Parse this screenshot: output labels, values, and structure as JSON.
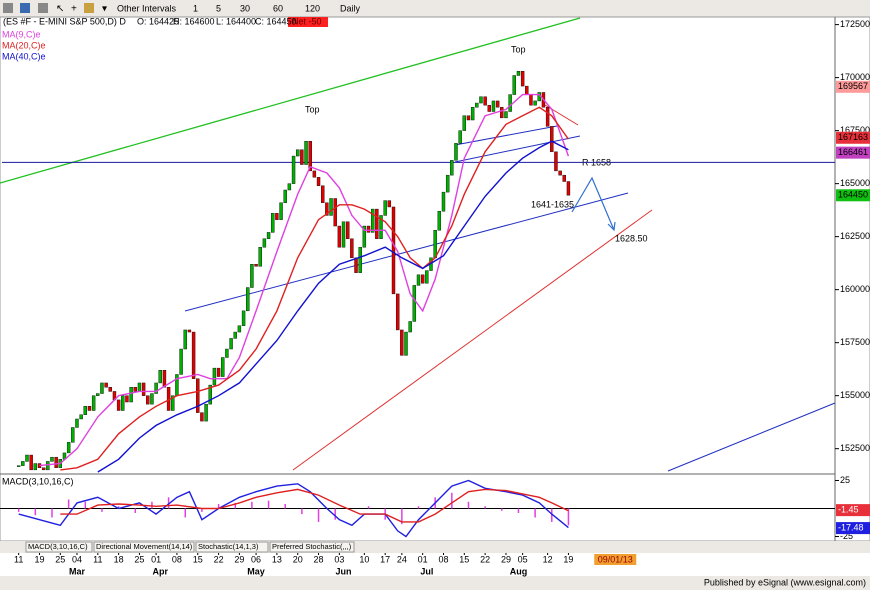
{
  "toolbar": {
    "other_intervals": "Other Intervals",
    "intervals": [
      "1",
      "5",
      "30",
      "60",
      "120",
      "Daily"
    ]
  },
  "chart_data": {
    "type": "candlestick",
    "symbol": "(ES #F - E-MINI S&P 500,D) D",
    "quote": [
      "O: 164425",
      "H: 164600",
      "L: 164400",
      "C: 164450"
    ],
    "net": "Net -50",
    "close": [
      151700,
      151900,
      152200,
      151500,
      151800,
      151600,
      151500,
      151900,
      152100,
      151600,
      152000,
      152300,
      152800,
      153500,
      153900,
      154100,
      154500,
      154300,
      155000,
      155100,
      155600,
      155400,
      155200,
      154800,
      154300,
      155000,
      154700,
      155400,
      155200,
      155600,
      155000,
      154600,
      155100,
      155600,
      156200,
      155400,
      154300,
      155000,
      156000,
      157200,
      158100,
      158000,
      155800,
      154200,
      153800,
      154600,
      155500,
      156300,
      155900,
      156800,
      157200,
      157700,
      158000,
      158300,
      159000,
      160100,
      161200,
      161100,
      162000,
      162400,
      162700,
      163600,
      163300,
      164100,
      164700,
      165000,
      166300,
      166600,
      165900,
      167000,
      165600,
      165300,
      164900,
      164100,
      163500,
      164300,
      163000,
      162000,
      163200,
      162400,
      161500,
      160800,
      162000,
      163000,
      162700,
      163800,
      162400,
      163500,
      164200,
      163900,
      159800,
      158100,
      156900,
      158000,
      158500,
      160200,
      160700,
      160300,
      160900,
      161500,
      162800,
      163700,
      164600,
      165400,
      166100,
      166900,
      167500,
      168200,
      168000,
      168600,
      168800,
      169100,
      168700,
      168400,
      168900,
      168600,
      168100,
      168400,
      169200,
      170100,
      170300,
      169600,
      169200,
      168700,
      168900,
      169300,
      168600,
      167700,
      166500,
      165600,
      165400,
      165100,
      164450
    ],
    "up_color": "#00b000",
    "down_color": "#e00000",
    "series": [
      {
        "name": "MA(9,C)e",
        "color": "#e040e0",
        "x": [
          5,
          10,
          14,
          19,
          24,
          29,
          33,
          38,
          43,
          46,
          50,
          53,
          57,
          62,
          67,
          70,
          74,
          77,
          80,
          83,
          88,
          91,
          94,
          97,
          100,
          104,
          107,
          112,
          117,
          121,
          125,
          128,
          132
        ],
        "values": [
          151700,
          151800,
          152500,
          154000,
          155000,
          155200,
          155200,
          155800,
          156000,
          155800,
          155800,
          156800,
          159000,
          161800,
          164500,
          165800,
          165500,
          164800,
          163500,
          162800,
          162800,
          161800,
          159800,
          159000,
          160500,
          163500,
          166200,
          168200,
          168500,
          169200,
          169200,
          168500,
          166300
        ]
      },
      {
        "name": "MA(20,C)e",
        "color": "#e02020",
        "x": [
          10,
          14,
          19,
          24,
          29,
          33,
          38,
          43,
          48,
          53,
          57,
          62,
          67,
          72,
          77,
          80,
          83,
          88,
          91,
          94,
          97,
          100,
          104,
          107,
          112,
          117,
          121,
          125,
          128,
          132
        ],
        "values": [
          151500,
          151600,
          152000,
          153200,
          154000,
          154500,
          155000,
          155200,
          155500,
          156200,
          157200,
          159000,
          161500,
          163300,
          164000,
          164000,
          163800,
          163200,
          162500,
          161500,
          161000,
          161500,
          163000,
          164500,
          166500,
          167800,
          168200,
          168600,
          168200,
          167100
        ]
      },
      {
        "name": "MA(40,C)e",
        "color": "#1010d0",
        "x": [
          19,
          24,
          29,
          33,
          38,
          43,
          48,
          53,
          57,
          62,
          67,
          72,
          77,
          83,
          88,
          92,
          97,
          102,
          107,
          112,
          117,
          121,
          125,
          128,
          132
        ],
        "values": [
          151400,
          152000,
          153000,
          153600,
          154100,
          154500,
          155000,
          155600,
          156500,
          157600,
          159000,
          160300,
          161200,
          161600,
          162000,
          161500,
          161000,
          161600,
          163000,
          164400,
          165500,
          166200,
          166700,
          167000,
          166600
        ]
      }
    ],
    "xlim": [
      -4,
      196
    ],
    "ylim": [
      151400,
      173000
    ],
    "yticks": [
      172500,
      170000,
      167500,
      165000,
      162500,
      160000,
      157500,
      155000,
      152500
    ],
    "xticks": [
      {
        "value": 0,
        "label": "11"
      },
      {
        "value": 5,
        "label": "19"
      },
      {
        "value": 10,
        "label": "25"
      },
      {
        "value": 14,
        "label": "04"
      },
      {
        "value": 19,
        "label": "11"
      },
      {
        "value": 24,
        "label": "18"
      },
      {
        "value": 29,
        "label": "25"
      },
      {
        "value": 33,
        "label": "01"
      },
      {
        "value": 38,
        "label": "08"
      },
      {
        "value": 43,
        "label": "15"
      },
      {
        "value": 48,
        "label": "22"
      },
      {
        "value": 53,
        "label": "29"
      },
      {
        "value": 57,
        "label": "06"
      },
      {
        "value": 62,
        "label": "13"
      },
      {
        "value": 67,
        "label": "20"
      },
      {
        "value": 72,
        "label": "28"
      },
      {
        "value": 77,
        "label": "03"
      },
      {
        "value": 83,
        "label": "10"
      },
      {
        "value": 88,
        "label": "17"
      },
      {
        "value": 92,
        "label": "24"
      },
      {
        "value": 97,
        "label": "01"
      },
      {
        "value": 102,
        "label": "08"
      },
      {
        "value": 107,
        "label": "15"
      },
      {
        "value": 112,
        "label": "22"
      },
      {
        "value": 117,
        "label": "29"
      },
      {
        "value": 121,
        "label": "05"
      },
      {
        "value": 127,
        "label": "12"
      },
      {
        "value": 132,
        "label": "19"
      }
    ],
    "months": [
      {
        "value": 14,
        "label": "Mar"
      },
      {
        "value": 34,
        "label": "Apr"
      },
      {
        "value": 57,
        "label": "May"
      },
      {
        "value": 78,
        "label": "Jun"
      },
      {
        "value": 98,
        "label": "Jul"
      },
      {
        "value": 120,
        "label": "Aug"
      }
    ],
    "future_date": {
      "value": 143,
      "label": "09/01/13"
    },
    "price_labels": [
      {
        "value": 169567,
        "color": "#ff9a9a"
      },
      {
        "value": 167163,
        "color": "#e8303a"
      },
      {
        "value": 166461,
        "color": "#c040c0"
      },
      {
        "value": 164450,
        "color": "#10c010"
      }
    ],
    "hline": {
      "value": 166000,
      "color": "#1a1aa0"
    },
    "annotations": [
      "Top",
      "Top",
      "R 1658",
      "1641-1635",
      "1628.50"
    ]
  },
  "indicator": {
    "type": "macd",
    "label": "MACD(3,10,16,C)",
    "ylim": [
      -29,
      29
    ],
    "yticks": [
      25,
      -25
    ],
    "series": [
      {
        "color": "#2020e0",
        "x": [
          0,
          5,
          10,
          14,
          19,
          24,
          29,
          33,
          38,
          41,
          44,
          48,
          53,
          57,
          62,
          67,
          70,
          74,
          77,
          80,
          83,
          88,
          91,
          93,
          96,
          100,
          104,
          108,
          112,
          117,
          121,
          125,
          128,
          132
        ],
        "values": [
          -5,
          -10,
          -15,
          5,
          10,
          0,
          5,
          -5,
          10,
          15,
          -10,
          0,
          10,
          15,
          20,
          22,
          15,
          0,
          -10,
          -15,
          -5,
          -5,
          -20,
          -25,
          -10,
          5,
          20,
          25,
          18,
          15,
          12,
          5,
          -5,
          -17
        ]
      },
      {
        "color": "#e02020",
        "x": [
          10,
          14,
          19,
          24,
          29,
          33,
          38,
          44,
          48,
          53,
          57,
          62,
          67,
          72,
          77,
          82,
          88,
          92,
          96,
          100,
          104,
          108,
          112,
          117,
          121,
          125,
          128,
          132
        ],
        "values": [
          -5,
          -5,
          3,
          4,
          3,
          2,
          3,
          0,
          0,
          5,
          10,
          14,
          17,
          12,
          3,
          -5,
          -5,
          -12,
          -12,
          -5,
          5,
          15,
          17,
          16,
          13,
          10,
          5,
          -2
        ]
      }
    ],
    "histogram": {
      "color": "#e040e0",
      "x": [
        0,
        4,
        8,
        12,
        16,
        20,
        24,
        28,
        32,
        36,
        40,
        44,
        48,
        52,
        56,
        60,
        64,
        68,
        72,
        76,
        80,
        84,
        88,
        92,
        96,
        100,
        104,
        108,
        112,
        116,
        120,
        124,
        128,
        132
      ],
      "values": [
        -3,
        -6,
        -8,
        8,
        6,
        -3,
        2,
        -4,
        6,
        10,
        -8,
        -3,
        4,
        5,
        6,
        7,
        4,
        -5,
        -12,
        -10,
        0,
        2,
        -10,
        -14,
        2,
        10,
        14,
        6,
        2,
        -2,
        -4,
        -8,
        -12,
        -15
      ]
    },
    "value_labels": [
      {
        "value": -1.45,
        "color": "#e8303a"
      },
      {
        "value": -17.48,
        "color": "#2020e0"
      }
    ]
  },
  "tabs": [
    "MACD(3,10,16,C)",
    "Directional Movement(14,14)",
    "Stochastic(14,1,3)",
    "Preferred Stochastic(,,,)"
  ],
  "footer": "Published by eSignal (www.esignal.com)"
}
